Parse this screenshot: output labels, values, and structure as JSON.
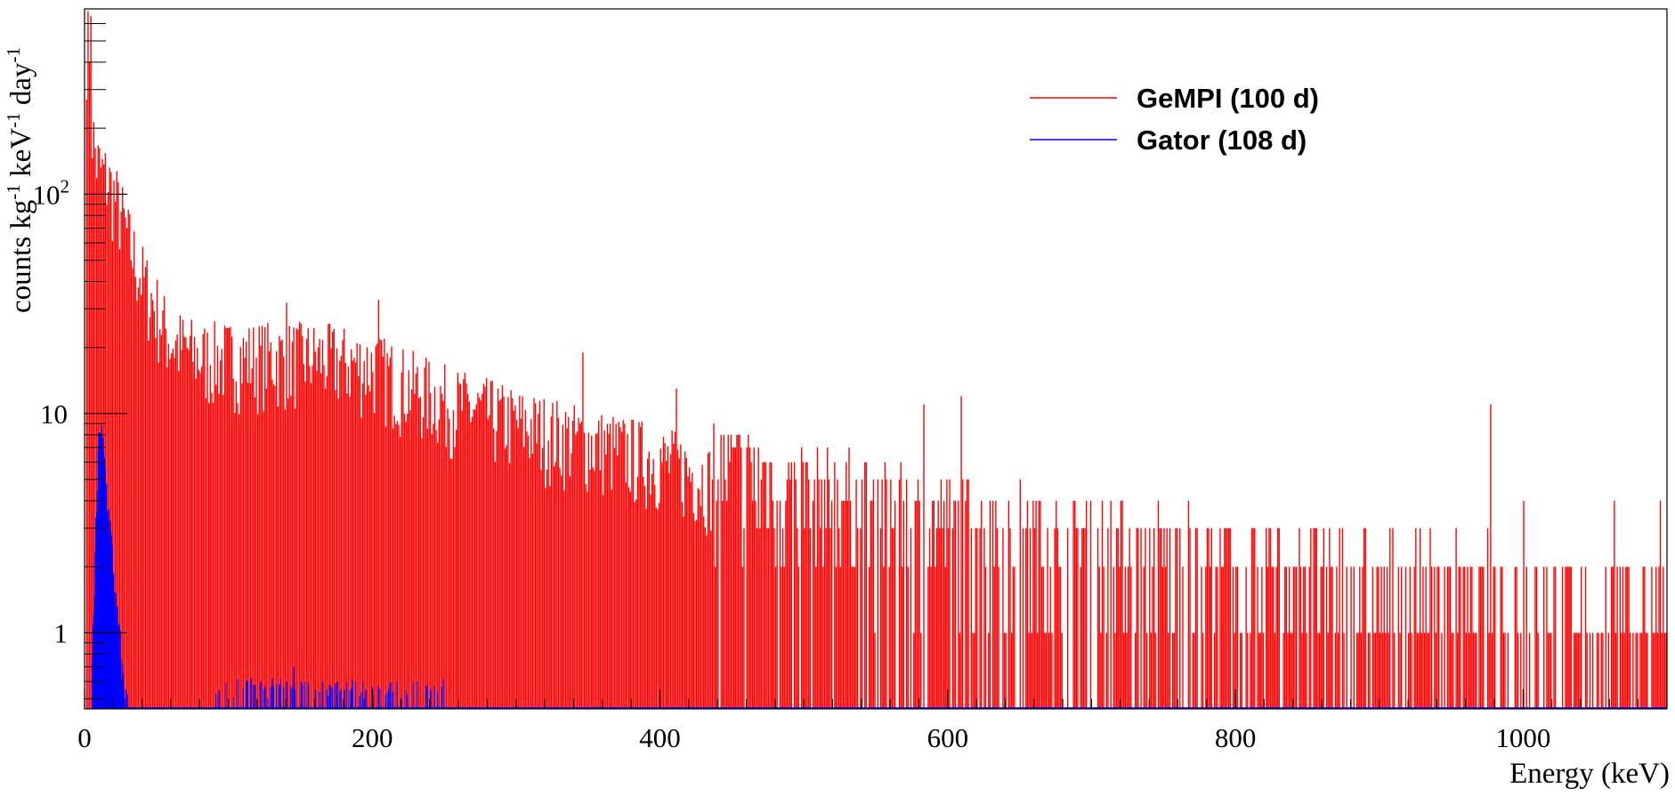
{
  "chart_data": {
    "type": "bar",
    "xlabel": "Energy (keV)",
    "ylabel": "counts kg^-1 keV^-1 day^-1",
    "ylabel_parts": {
      "counts": "counts kg",
      "exp1": "-1",
      "kev": " keV",
      "exp2": "-1",
      "day": " day",
      "exp3": "-1"
    },
    "xlim": [
      0,
      1100
    ],
    "ylim": [
      0.45,
      700
    ],
    "yscale": "log",
    "grid": false,
    "legend_position": "top-right",
    "x_ticks": [
      {
        "value": 0,
        "label": "0"
      },
      {
        "value": 200,
        "label": "200"
      },
      {
        "value": 400,
        "label": "400"
      },
      {
        "value": 600,
        "label": "600"
      },
      {
        "value": 800,
        "label": "800"
      },
      {
        "value": 1000,
        "label": "1000"
      }
    ],
    "y_ticks": [
      {
        "value": 1,
        "label": "1"
      },
      {
        "value": 10,
        "label": "10"
      }
    ],
    "y_tick_100": {
      "value": 100,
      "base": "10",
      "exp": "2"
    },
    "series": [
      {
        "name": "GeMPI (100 d)",
        "color": "#ff0000",
        "envelope": [
          [
            3,
            600
          ],
          [
            5,
            240
          ],
          [
            8,
            170
          ],
          [
            12,
            150
          ],
          [
            16,
            140
          ],
          [
            20,
            120
          ],
          [
            25,
            100
          ],
          [
            30,
            75
          ],
          [
            35,
            60
          ],
          [
            40,
            50
          ],
          [
            45,
            42
          ],
          [
            50,
            36
          ],
          [
            55,
            30
          ],
          [
            60,
            26
          ],
          [
            70,
            24
          ],
          [
            80,
            22
          ],
          [
            100,
            22
          ],
          [
            120,
            22
          ],
          [
            140,
            22
          ],
          [
            160,
            22
          ],
          [
            180,
            21
          ],
          [
            200,
            20
          ],
          [
            220,
            17
          ],
          [
            250,
            14
          ],
          [
            300,
            11
          ],
          [
            350,
            9
          ],
          [
            400,
            7.5
          ],
          [
            450,
            5.5
          ],
          [
            500,
            4.5
          ],
          [
            550,
            3.8
          ],
          [
            600,
            3.2
          ],
          [
            650,
            2.8
          ],
          [
            700,
            2.5
          ],
          [
            800,
            2.0
          ],
          [
            900,
            1.7
          ],
          [
            1000,
            1.5
          ],
          [
            1100,
            1.3
          ]
        ],
        "peaks": [
          {
            "x": 4,
            "y": 650
          },
          {
            "x": 140,
            "y": 32
          },
          {
            "x": 204,
            "y": 33
          },
          {
            "x": 346,
            "y": 19
          },
          {
            "x": 411,
            "y": 13
          },
          {
            "x": 583,
            "y": 11
          },
          {
            "x": 609,
            "y": 12
          },
          {
            "x": 977,
            "y": 11
          },
          {
            "x": 1000,
            "y": 4
          },
          {
            "x": 1063,
            "y": 4
          },
          {
            "x": 1095,
            "y": 4
          }
        ]
      },
      {
        "name": "Gator (108 d)",
        "color": "#0000ff",
        "envelope": [
          [
            5,
            0.8
          ],
          [
            8,
            4
          ],
          [
            10,
            10
          ],
          [
            12,
            8
          ],
          [
            14,
            6
          ],
          [
            16,
            4
          ],
          [
            18,
            3
          ],
          [
            20,
            2
          ],
          [
            22,
            1.3
          ],
          [
            24,
            1.05
          ],
          [
            26,
            0.7
          ],
          [
            28,
            0.55
          ],
          [
            30,
            0.48
          ]
        ],
        "sparse_bins": [
          {
            "x": 93,
            "y": 0.55
          },
          {
            "x": 112,
            "y": 0.6
          },
          {
            "x": 115,
            "y": 0.62
          },
          {
            "x": 118,
            "y": 0.58
          },
          {
            "x": 122,
            "y": 0.6
          },
          {
            "x": 125,
            "y": 0.56
          },
          {
            "x": 130,
            "y": 0.62
          },
          {
            "x": 135,
            "y": 0.58
          },
          {
            "x": 140,
            "y": 0.6
          },
          {
            "x": 145,
            "y": 0.7
          },
          {
            "x": 150,
            "y": 0.6
          },
          {
            "x": 155,
            "y": 0.58
          },
          {
            "x": 160,
            "y": 0.55
          },
          {
            "x": 165,
            "y": 0.6
          },
          {
            "x": 170,
            "y": 0.58
          },
          {
            "x": 175,
            "y": 0.6
          },
          {
            "x": 180,
            "y": 0.55
          },
          {
            "x": 185,
            "y": 0.56
          },
          {
            "x": 195,
            "y": 0.55
          },
          {
            "x": 200,
            "y": 0.52
          },
          {
            "x": 240,
            "y": 0.55
          }
        ]
      }
    ]
  },
  "legend": [
    {
      "label": "GeMPI (100 d)",
      "color": "#ff0000"
    },
    {
      "label": "Gator (108 d)",
      "color": "#0000ff"
    }
  ]
}
